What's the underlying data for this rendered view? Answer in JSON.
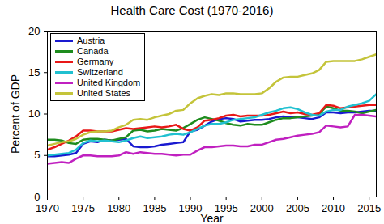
{
  "chart_data": {
    "type": "line",
    "title": "Health Care Cost (1970-2016)",
    "x_label": "Year",
    "y_label": "Percent of GDP",
    "x": [
      1970,
      1971,
      1972,
      1973,
      1974,
      1975,
      1976,
      1977,
      1978,
      1979,
      1980,
      1981,
      1982,
      1983,
      1984,
      1985,
      1986,
      1987,
      1988,
      1989,
      1990,
      1991,
      1992,
      1993,
      1994,
      1995,
      1996,
      1997,
      1998,
      1999,
      2000,
      2001,
      2002,
      2003,
      2004,
      2005,
      2006,
      2007,
      2008,
      2009,
      2010,
      2011,
      2012,
      2013,
      2014,
      2015,
      2016
    ],
    "series": [
      {
        "name": "Austria",
        "color": "#1a1ad0",
        "values": [
          4.9,
          4.9,
          5.0,
          5.1,
          5.3,
          6.4,
          6.7,
          6.6,
          6.9,
          6.8,
          6.9,
          7.0,
          6.1,
          6.0,
          6.0,
          6.1,
          6.3,
          6.4,
          6.5,
          6.6,
          7.9,
          8.1,
          8.6,
          9.1,
          9.4,
          9.5,
          9.4,
          9.1,
          9.2,
          9.3,
          9.3,
          9.4,
          9.6,
          9.7,
          9.6,
          9.6,
          9.5,
          9.4,
          9.6,
          10.2,
          10.2,
          10.1,
          10.2,
          10.2,
          10.3,
          10.4,
          10.4
        ]
      },
      {
        "name": "Canada",
        "color": "#1e8c1e",
        "values": [
          6.9,
          6.9,
          6.8,
          6.5,
          6.4,
          6.9,
          7.0,
          7.0,
          6.9,
          6.8,
          7.0,
          7.2,
          8.0,
          8.1,
          7.9,
          8.0,
          8.2,
          8.1,
          8.0,
          8.3,
          8.8,
          9.3,
          9.6,
          9.4,
          9.2,
          8.9,
          8.7,
          8.6,
          8.8,
          8.7,
          8.7,
          9.0,
          9.3,
          9.5,
          9.5,
          9.6,
          9.7,
          9.8,
          10.0,
          10.9,
          10.7,
          10.4,
          10.4,
          10.3,
          10.1,
          10.3,
          10.5
        ]
      },
      {
        "name": "Germany",
        "color": "#e81818",
        "values": [
          5.7,
          6.0,
          6.4,
          6.8,
          7.3,
          8.0,
          8.0,
          7.9,
          7.9,
          7.9,
          8.1,
          8.3,
          8.2,
          8.3,
          8.4,
          8.5,
          8.4,
          8.5,
          8.7,
          8.2,
          8.0,
          8.4,
          9.2,
          9.3,
          9.5,
          9.8,
          9.9,
          9.7,
          9.8,
          9.8,
          9.8,
          9.9,
          10.1,
          10.3,
          10.1,
          10.2,
          10.0,
          9.9,
          10.1,
          11.1,
          11.0,
          10.7,
          10.8,
          10.9,
          11.0,
          11.1,
          11.1
        ]
      },
      {
        "name": "Switzerland",
        "color": "#20c0d0",
        "values": [
          5.0,
          5.1,
          5.2,
          5.3,
          5.7,
          6.5,
          6.8,
          6.7,
          6.8,
          6.7,
          6.6,
          6.8,
          7.1,
          7.3,
          7.1,
          7.2,
          7.3,
          7.5,
          7.6,
          7.5,
          7.8,
          8.2,
          8.6,
          8.8,
          8.8,
          9.0,
          9.3,
          9.4,
          9.5,
          9.6,
          9.9,
          10.2,
          10.4,
          10.7,
          10.8,
          10.6,
          10.2,
          9.9,
          9.8,
          10.3,
          10.5,
          10.5,
          10.9,
          11.1,
          11.3,
          11.6,
          12.4
        ]
      },
      {
        "name": "United Kingdom",
        "color": "#c020c0",
        "values": [
          4.0,
          4.1,
          4.2,
          4.1,
          4.6,
          5.0,
          5.0,
          4.9,
          4.9,
          4.9,
          5.0,
          5.4,
          5.2,
          5.4,
          5.3,
          5.2,
          5.2,
          5.1,
          5.0,
          5.1,
          5.1,
          5.6,
          6.0,
          6.0,
          6.1,
          6.2,
          6.2,
          6.1,
          6.1,
          6.3,
          6.3,
          6.6,
          6.9,
          7.0,
          7.2,
          7.4,
          7.5,
          7.6,
          7.8,
          8.6,
          8.5,
          8.4,
          8.5,
          9.9,
          9.9,
          9.8,
          9.7
        ]
      },
      {
        "name": "United States",
        "color": "#c4c43a",
        "values": [
          6.2,
          6.4,
          6.6,
          6.7,
          7.0,
          7.5,
          7.8,
          7.9,
          7.9,
          8.0,
          8.4,
          8.7,
          9.3,
          9.4,
          9.3,
          9.6,
          9.8,
          10.0,
          10.4,
          10.5,
          11.3,
          11.9,
          12.2,
          12.4,
          12.3,
          12.5,
          12.5,
          12.4,
          12.4,
          12.4,
          12.5,
          13.1,
          13.9,
          14.4,
          14.5,
          14.5,
          14.7,
          14.9,
          15.3,
          16.3,
          16.4,
          16.4,
          16.4,
          16.4,
          16.6,
          16.9,
          17.2
        ]
      }
    ],
    "xlim": [
      1970,
      2016
    ],
    "xticks": [
      1970,
      1975,
      1980,
      1985,
      1990,
      1995,
      2000,
      2005,
      2010,
      2015
    ],
    "ylim": [
      0,
      20
    ],
    "yticks": [
      0,
      5,
      10,
      15,
      20
    ],
    "grid": false,
    "legend": "top-left"
  }
}
